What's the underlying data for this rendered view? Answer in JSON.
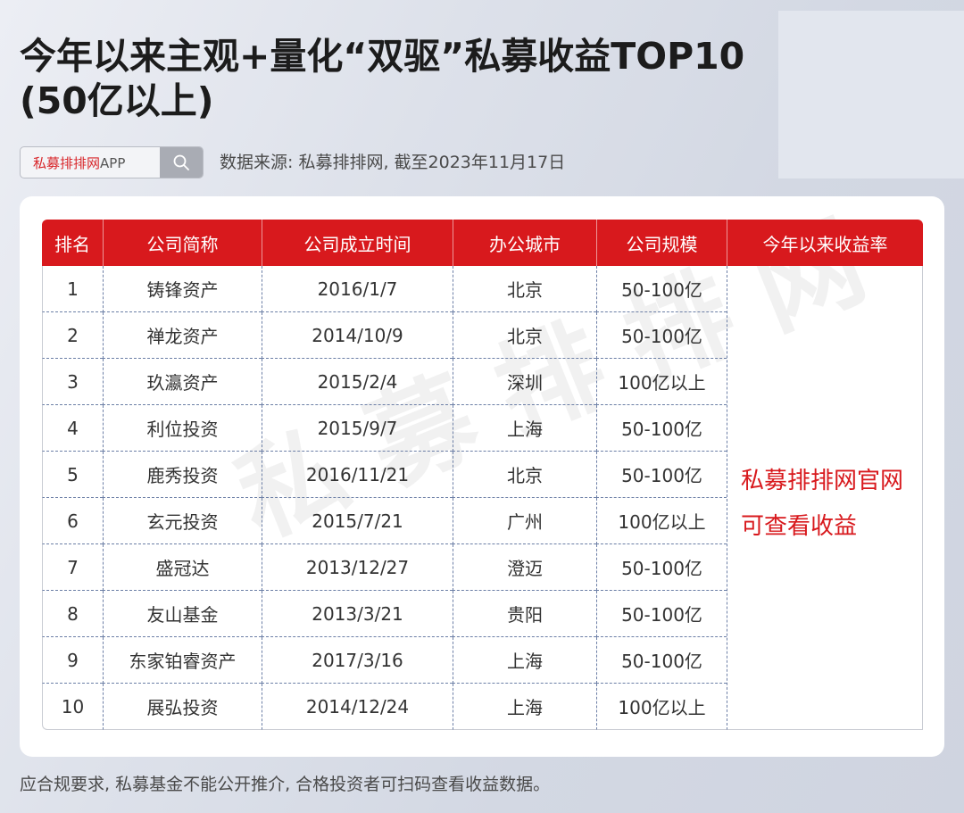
{
  "title": "今年以来主观+量化“双驱”私募收益TOP10 (50亿以上)",
  "search": {
    "brand": "私募排排网",
    "suffix": "APP"
  },
  "source": "数据来源: 私募排排网, 截至2023年11月17日",
  "table": {
    "headers": [
      "排名",
      "公司简称",
      "公司成立时间",
      "办公城市",
      "公司规模",
      "今年以来收益率"
    ],
    "rows": [
      [
        "1",
        "铸锋资产",
        "2016/1/7",
        "北京",
        "50-100亿"
      ],
      [
        "2",
        "禅龙资产",
        "2014/10/9",
        "北京",
        "50-100亿"
      ],
      [
        "3",
        "玖瀛资产",
        "2015/2/4",
        "深圳",
        "100亿以上"
      ],
      [
        "4",
        "利位投资",
        "2015/9/7",
        "上海",
        "50-100亿"
      ],
      [
        "5",
        "鹿秀投资",
        "2016/11/21",
        "北京",
        "50-100亿"
      ],
      [
        "6",
        "玄元投资",
        "2015/7/21",
        "广州",
        "100亿以上"
      ],
      [
        "7",
        "盛冠达",
        "2013/12/27",
        "澄迈",
        "50-100亿"
      ],
      [
        "8",
        "友山基金",
        "2013/3/21",
        "贵阳",
        "50-100亿"
      ],
      [
        "9",
        "东家铂睿资产",
        "2017/3/16",
        "上海",
        "50-100亿"
      ],
      [
        "10",
        "展弘投资",
        "2014/12/24",
        "上海",
        "100亿以上"
      ]
    ],
    "side_note_line1": "私募排排网官网",
    "side_note_line2": "可查看收益"
  },
  "watermark": "私募排排网",
  "footer": "应合规要求, 私募基金不能公开推介, 合格投资者可扫码查看收益数据。",
  "colors": {
    "accent": "#d8191d",
    "row_divider": "#6c7fa6"
  },
  "icons": {
    "search_button": "search-icon"
  }
}
